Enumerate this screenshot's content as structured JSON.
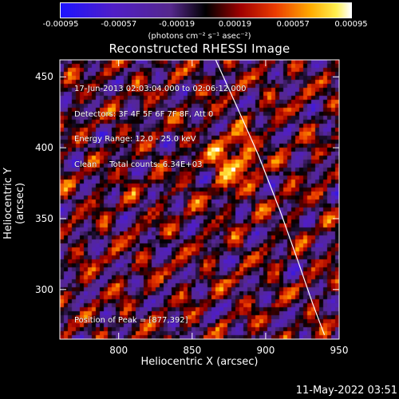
{
  "colorbar": {
    "ticks": [
      "-0.00095",
      "-0.00057",
      "-0.00019",
      "0.00019",
      "0.00057",
      "0.00095"
    ],
    "units": "(photons cm⁻² s⁻¹ asec⁻²)",
    "min": -0.00095,
    "max": 0.00095
  },
  "title": "Reconstructed RHESSI Image",
  "info": {
    "time": "17-Jun-2013 02:03:04.000 to 02:06:12.000",
    "detectors": "Detectors: 3F 4F 5F 6F 7F 8F, Att 0",
    "energy": "Energy Range: 12.0 - 25.0 keV",
    "clean": "Clean     Total counts: 6.34E+03",
    "peak": "Position of Peak = [877,392]"
  },
  "axes": {
    "xlabel": "Heliocentric X (arcsec)",
    "ylabel": "Heliocentric Y (arcsec)",
    "xlim": [
      760,
      950
    ],
    "ylim": [
      265,
      462
    ],
    "xticks": [
      800,
      850,
      900,
      950
    ],
    "yticks": [
      300,
      350,
      400,
      450
    ]
  },
  "timestamp": "11-May-2022 03:51",
  "chart_data": {
    "type": "heatmap",
    "title": "Reconstructed RHESSI Image",
    "xlabel": "Heliocentric X (arcsec)",
    "ylabel": "Heliocentric Y (arcsec)",
    "xlim": [
      760,
      950
    ],
    "ylim": [
      265,
      462
    ],
    "colorbar_range": [
      -0.00095,
      0.00095
    ],
    "colormap": "blue-purple-black-red-orange-yellow-white",
    "peak": [
      877,
      392
    ],
    "limb_curve": [
      [
        866,
        462
      ],
      [
        880,
        430
      ],
      [
        895,
        395
      ],
      [
        910,
        355
      ],
      [
        922,
        320
      ],
      [
        932,
        290
      ],
      [
        940,
        268
      ]
    ]
  }
}
